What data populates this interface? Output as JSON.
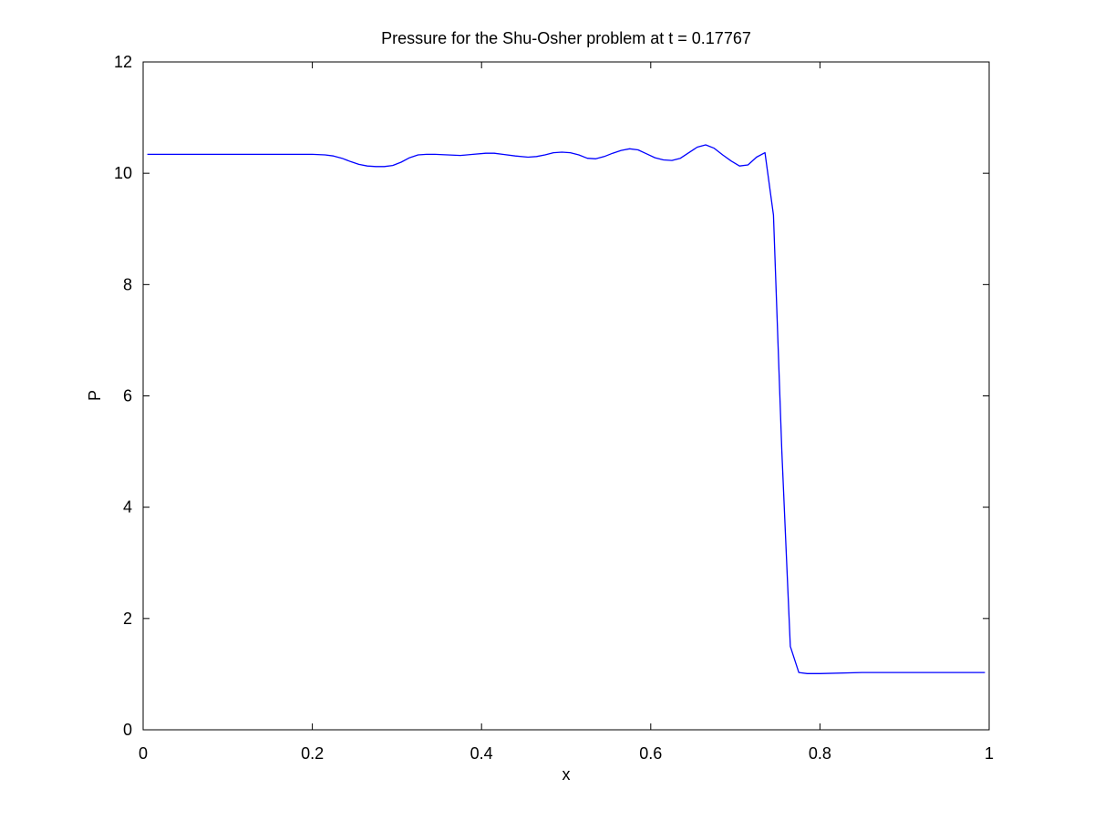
{
  "chart_data": {
    "type": "line",
    "title": "Pressure for the Shu-Osher problem at t = 0.17767",
    "xlabel": "x",
    "ylabel": "P",
    "xlim": [
      0,
      1
    ],
    "ylim": [
      0,
      12
    ],
    "xticks": [
      0,
      0.2,
      0.4,
      0.6,
      0.8,
      1
    ],
    "xtick_labels": [
      "0",
      "0.2",
      "0.4",
      "0.6",
      "0.8",
      "1"
    ],
    "yticks": [
      0,
      2,
      4,
      6,
      8,
      10,
      12
    ],
    "ytick_labels": [
      "0",
      "2",
      "4",
      "6",
      "8",
      "10",
      "12"
    ],
    "grid": false,
    "box": true,
    "series": [
      {
        "color": "#0000ff",
        "x": [
          0.005,
          0.05,
          0.1,
          0.15,
          0.2,
          0.215,
          0.225,
          0.235,
          0.245,
          0.255,
          0.265,
          0.275,
          0.285,
          0.295,
          0.305,
          0.315,
          0.325,
          0.335,
          0.345,
          0.36,
          0.375,
          0.39,
          0.405,
          0.415,
          0.425,
          0.44,
          0.455,
          0.465,
          0.475,
          0.485,
          0.495,
          0.505,
          0.515,
          0.525,
          0.535,
          0.545,
          0.555,
          0.565,
          0.575,
          0.585,
          0.595,
          0.605,
          0.615,
          0.625,
          0.635,
          0.645,
          0.655,
          0.665,
          0.675,
          0.685,
          0.695,
          0.705,
          0.715,
          0.725,
          0.735,
          0.745,
          0.755,
          0.765,
          0.775,
          0.785,
          0.8,
          0.85,
          0.9,
          0.95,
          0.995
        ],
        "y": [
          10.34,
          10.34,
          10.34,
          10.34,
          10.34,
          10.33,
          10.31,
          10.27,
          10.21,
          10.16,
          10.13,
          10.12,
          10.12,
          10.14,
          10.2,
          10.28,
          10.33,
          10.34,
          10.34,
          10.33,
          10.32,
          10.34,
          10.36,
          10.36,
          10.34,
          10.31,
          10.29,
          10.3,
          10.33,
          10.37,
          10.38,
          10.37,
          10.33,
          10.27,
          10.26,
          10.3,
          10.36,
          10.41,
          10.44,
          10.42,
          10.35,
          10.28,
          10.24,
          10.23,
          10.27,
          10.37,
          10.47,
          10.51,
          10.45,
          10.33,
          10.22,
          10.13,
          10.15,
          10.29,
          10.37,
          9.25,
          5.0,
          1.5,
          1.03,
          1.01,
          1.01,
          1.03,
          1.03,
          1.03,
          1.03
        ]
      }
    ]
  }
}
